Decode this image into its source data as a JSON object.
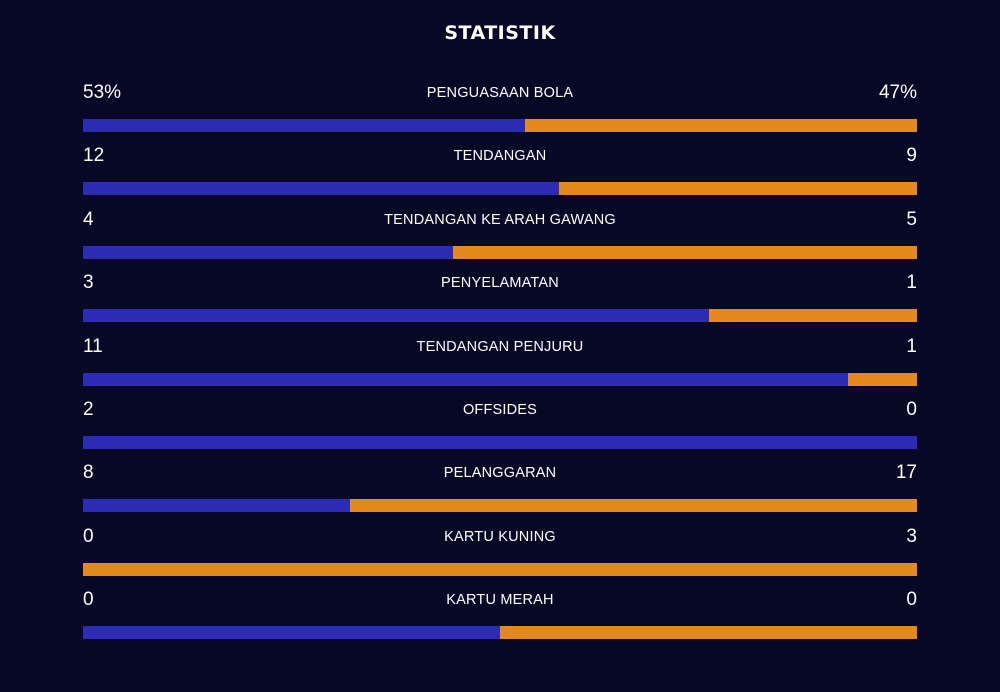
{
  "title": "STATISTIK",
  "colors": {
    "background": "#070726",
    "home": "#2b2bb5",
    "away": "#e5891d",
    "text": "#ffffff"
  },
  "stats": [
    {
      "name": "PENGUASAAN BOLA",
      "home": "53%",
      "away": "47%",
      "home_share": 0.53
    },
    {
      "name": "TENDANGAN",
      "home": "12",
      "away": "9",
      "home_share": 0.571
    },
    {
      "name": "TENDANGAN KE ARAH GAWANG",
      "home": "4",
      "away": "5",
      "home_share": 0.444
    },
    {
      "name": "PENYELAMATAN",
      "home": "3",
      "away": "1",
      "home_share": 0.75
    },
    {
      "name": "TENDANGAN PENJURU",
      "home": "11",
      "away": "1",
      "home_share": 0.917
    },
    {
      "name": "OFFSIDES",
      "home": "2",
      "away": "0",
      "home_share": 1.0
    },
    {
      "name": "PELANGGARAN",
      "home": "8",
      "away": "17",
      "home_share": 0.32
    },
    {
      "name": "KARTU KUNING",
      "home": "0",
      "away": "3",
      "home_share": 0.0
    },
    {
      "name": "KARTU MERAH",
      "home": "0",
      "away": "0",
      "home_share": 0.5
    }
  ]
}
